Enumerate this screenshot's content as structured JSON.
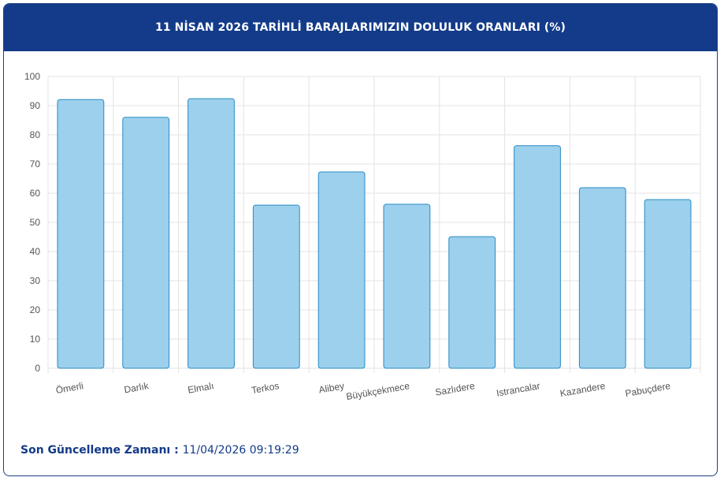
{
  "header": {
    "title": "11 NİSAN 2026 TARİHLİ BARAJLARIMIZIN DOLULUK ORANLARI (%)"
  },
  "footer": {
    "label": "Son Güncelleme Zamanı",
    "separator": " : ",
    "value": "11/04/2026 09:19:29"
  },
  "colors": {
    "header_bg": "#133b89",
    "bar_fill": "#9cd0ec",
    "bar_stroke": "#2a8bc4",
    "grid": "#e3e3e3",
    "axis_text": "#555555"
  },
  "chart_data": {
    "type": "bar",
    "title": "11 NİSAN 2026 TARİHLİ BARAJLARIMIZIN DOLULUK ORANLARI (%)",
    "categories": [
      "Ömerli",
      "Darlık",
      "Elmalı",
      "Terkos",
      "Alibey",
      "Büyükçekmece",
      "Sazlıdere",
      "Istrancalar",
      "Kazandere",
      "Pabuçdere"
    ],
    "values": [
      92.1,
      86.0,
      92.4,
      55.9,
      67.3,
      56.2,
      45.1,
      76.3,
      61.9,
      57.8
    ],
    "ylim": [
      0,
      100
    ],
    "yticks": [
      "0",
      "10",
      "20",
      "30",
      "40",
      "50",
      "60",
      "70",
      "80",
      "90",
      "100"
    ],
    "xlabel": "",
    "ylabel": "",
    "grid": true,
    "legend": "none"
  }
}
